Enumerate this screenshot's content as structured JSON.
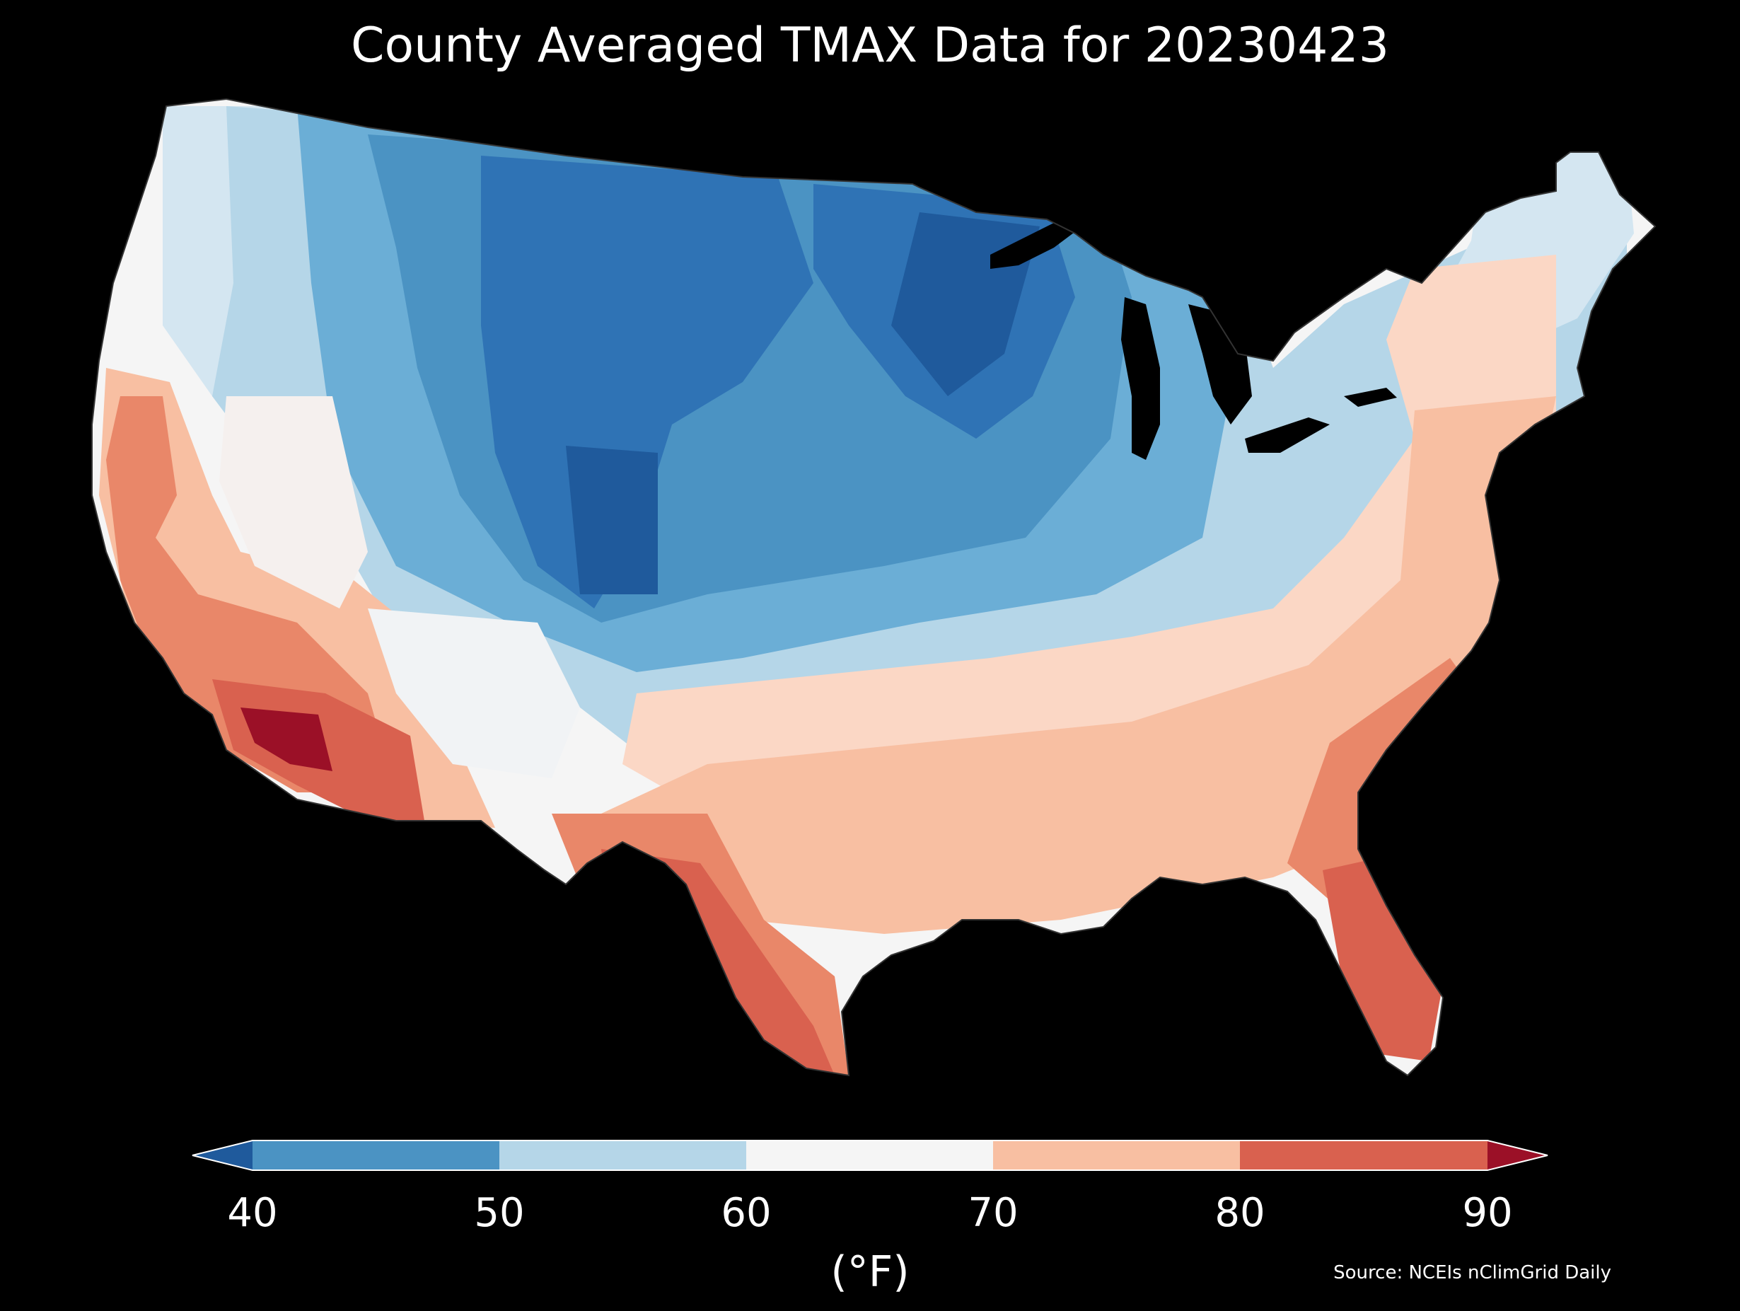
{
  "title": "County Averaged TMAX Data for 20230423",
  "colorbar": {
    "ticks": [
      "40",
      "50",
      "60",
      "70",
      "80",
      "90"
    ],
    "units": "(°F)",
    "colors": {
      "below_40": "#1f5a9c",
      "b40_50": "#4b93c3",
      "b50_60": "#b5d6e8",
      "b60_70": "#f5f5f5",
      "b70_80": "#f8bfa2",
      "b80_90": "#d9614f",
      "above_90": "#9b1027"
    }
  },
  "source": "Source: NCEIs nClimGrid Daily",
  "map": {
    "region": "Contiguous United States",
    "variable": "TMAX",
    "background": "#000000",
    "palette": [
      "#1f5a9c",
      "#4b93c3",
      "#b5d6e8",
      "#f5f5f5",
      "#f8bfa2",
      "#d9614f",
      "#9b1027"
    ]
  }
}
